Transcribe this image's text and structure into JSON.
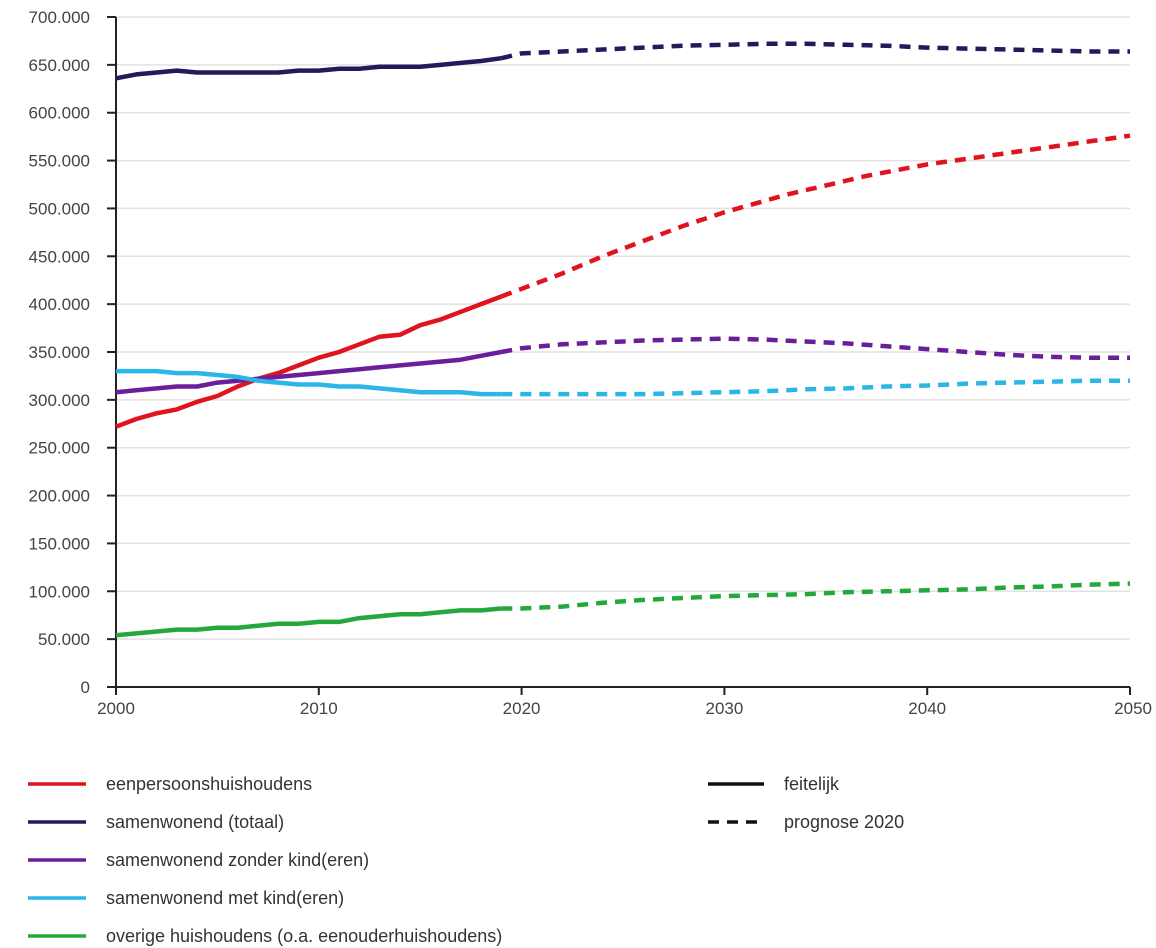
{
  "chart_data": {
    "type": "line",
    "title": "",
    "xlabel": "",
    "ylabel": "",
    "xlim": [
      2000,
      2050
    ],
    "ylim": [
      0,
      700000
    ],
    "x_ticks": [
      {
        "value": 2000,
        "label": "2000"
      },
      {
        "value": 2010,
        "label": "2010"
      },
      {
        "value": 2020,
        "label": "2020"
      },
      {
        "value": 2030,
        "label": "2030"
      },
      {
        "value": 2040,
        "label": "2040"
      },
      {
        "value": 2050,
        "label": "2050"
      }
    ],
    "y_ticks": [
      {
        "value": 0,
        "label": "0"
      },
      {
        "value": 50000,
        "label": "50.000"
      },
      {
        "value": 100000,
        "label": "100.000"
      },
      {
        "value": 150000,
        "label": "150.000"
      },
      {
        "value": 200000,
        "label": "200.000"
      },
      {
        "value": 250000,
        "label": "250.000"
      },
      {
        "value": 300000,
        "label": "300.000"
      },
      {
        "value": 350000,
        "label": "350.000"
      },
      {
        "value": 400000,
        "label": "400.000"
      },
      {
        "value": 450000,
        "label": "450.000"
      },
      {
        "value": 500000,
        "label": "500.000"
      },
      {
        "value": 550000,
        "label": "550.000"
      },
      {
        "value": 600000,
        "label": "600.000"
      },
      {
        "value": 650000,
        "label": "650.000"
      },
      {
        "value": 700000,
        "label": "700.000"
      }
    ],
    "grid": "horizontal",
    "legend_position": "bottom",
    "series": [
      {
        "name": "eenpersoonshuishoudens",
        "color": "#e0141e",
        "actual": {
          "x": [
            2000,
            2001,
            2002,
            2003,
            2004,
            2005,
            2006,
            2007,
            2008,
            2009,
            2010,
            2011,
            2012,
            2013,
            2014,
            2015,
            2016,
            2017,
            2018,
            2019
          ],
          "y": [
            272000,
            280000,
            286000,
            290000,
            298000,
            304000,
            314000,
            322000,
            328000,
            336000,
            344000,
            350000,
            358000,
            366000,
            368000,
            378000,
            384000,
            392000,
            400000,
            408000
          ]
        },
        "forecast": {
          "x": [
            2019,
            2020,
            2021,
            2022,
            2023,
            2024,
            2025,
            2026,
            2027,
            2028,
            2029,
            2030,
            2031,
            2032,
            2033,
            2034,
            2035,
            2036,
            2037,
            2038,
            2039,
            2040,
            2041,
            2042,
            2043,
            2044,
            2045,
            2046,
            2047,
            2048,
            2049,
            2050
          ],
          "y": [
            408000,
            416000,
            424000,
            432000,
            441000,
            450000,
            458000,
            466000,
            474000,
            482000,
            489000,
            496000,
            502000,
            508000,
            514000,
            519000,
            524000,
            529000,
            534000,
            538000,
            542000,
            546000,
            549000,
            552000,
            555000,
            558000,
            561000,
            564000,
            567000,
            570000,
            573000,
            576000
          ]
        }
      },
      {
        "name": "samenwonend (totaal)",
        "color": "#231a5c",
        "actual": {
          "x": [
            2000,
            2001,
            2002,
            2003,
            2004,
            2005,
            2006,
            2007,
            2008,
            2009,
            2010,
            2011,
            2012,
            2013,
            2014,
            2015,
            2016,
            2017,
            2018,
            2019
          ],
          "y": [
            636000,
            640000,
            642000,
            644000,
            642000,
            642000,
            642000,
            642000,
            642000,
            644000,
            644000,
            646000,
            646000,
            648000,
            648000,
            648000,
            650000,
            652000,
            654000,
            657000
          ]
        },
        "forecast": {
          "x": [
            2019,
            2020,
            2022,
            2024,
            2026,
            2028,
            2030,
            2032,
            2034,
            2036,
            2038,
            2040,
            2042,
            2044,
            2046,
            2048,
            2050
          ],
          "y": [
            657000,
            662000,
            664000,
            666000,
            668000,
            670000,
            671000,
            672000,
            672000,
            671000,
            670000,
            668000,
            667000,
            666000,
            665000,
            664000,
            664000
          ]
        }
      },
      {
        "name": "samenwonend zonder kind(eren)",
        "color": "#6a1e9c",
        "actual": {
          "x": [
            2000,
            2001,
            2002,
            2003,
            2004,
            2005,
            2006,
            2007,
            2008,
            2009,
            2010,
            2011,
            2012,
            2013,
            2014,
            2015,
            2016,
            2017,
            2018,
            2019
          ],
          "y": [
            308000,
            310000,
            312000,
            314000,
            314000,
            318000,
            320000,
            322000,
            324000,
            326000,
            328000,
            330000,
            332000,
            334000,
            336000,
            338000,
            340000,
            342000,
            346000,
            350000
          ]
        },
        "forecast": {
          "x": [
            2019,
            2020,
            2022,
            2024,
            2026,
            2028,
            2030,
            2032,
            2034,
            2036,
            2038,
            2040,
            2042,
            2044,
            2046,
            2048,
            2050
          ],
          "y": [
            350000,
            354000,
            358000,
            360000,
            362000,
            363000,
            364000,
            363000,
            361000,
            359000,
            356000,
            353000,
            350000,
            347000,
            345000,
            344000,
            344000
          ]
        }
      },
      {
        "name": "samenwonend met kind(eren)",
        "color": "#2ab6e6",
        "actual": {
          "x": [
            2000,
            2001,
            2002,
            2003,
            2004,
            2005,
            2006,
            2007,
            2008,
            2009,
            2010,
            2011,
            2012,
            2013,
            2014,
            2015,
            2016,
            2017,
            2018,
            2019
          ],
          "y": [
            330000,
            330000,
            330000,
            328000,
            328000,
            326000,
            324000,
            320000,
            318000,
            316000,
            316000,
            314000,
            314000,
            312000,
            310000,
            308000,
            308000,
            308000,
            306000,
            306000
          ]
        },
        "forecast": {
          "x": [
            2019,
            2020,
            2022,
            2024,
            2026,
            2028,
            2030,
            2032,
            2034,
            2036,
            2038,
            2040,
            2042,
            2044,
            2046,
            2048,
            2050
          ],
          "y": [
            306000,
            306000,
            306000,
            306000,
            306000,
            307000,
            308000,
            309000,
            311000,
            312000,
            314000,
            315000,
            317000,
            318000,
            319000,
            320000,
            320000
          ]
        }
      },
      {
        "name": "overige huishoudens (o.a. eenouderhuishoudens)",
        "color": "#24a83c",
        "actual": {
          "x": [
            2000,
            2001,
            2002,
            2003,
            2004,
            2005,
            2006,
            2007,
            2008,
            2009,
            2010,
            2011,
            2012,
            2013,
            2014,
            2015,
            2016,
            2017,
            2018,
            2019
          ],
          "y": [
            54000,
            56000,
            58000,
            60000,
            60000,
            62000,
            62000,
            64000,
            66000,
            66000,
            68000,
            68000,
            72000,
            74000,
            76000,
            76000,
            78000,
            80000,
            80000,
            82000
          ]
        },
        "forecast": {
          "x": [
            2019,
            2020,
            2022,
            2024,
            2026,
            2028,
            2030,
            2032,
            2034,
            2036,
            2038,
            2040,
            2042,
            2044,
            2046,
            2048,
            2050
          ],
          "y": [
            82000,
            82000,
            84000,
            88000,
            91000,
            93000,
            95000,
            96000,
            97000,
            99000,
            100000,
            101000,
            102000,
            104000,
            105000,
            107000,
            108000
          ]
        }
      }
    ],
    "line_style_legend": [
      {
        "label": "feitelijk",
        "style": "solid"
      },
      {
        "label": "prognose 2020",
        "style": "dashed"
      }
    ]
  },
  "colors": {
    "axis": "#222222",
    "grid": "#e2e2e2",
    "text": "#444444"
  }
}
